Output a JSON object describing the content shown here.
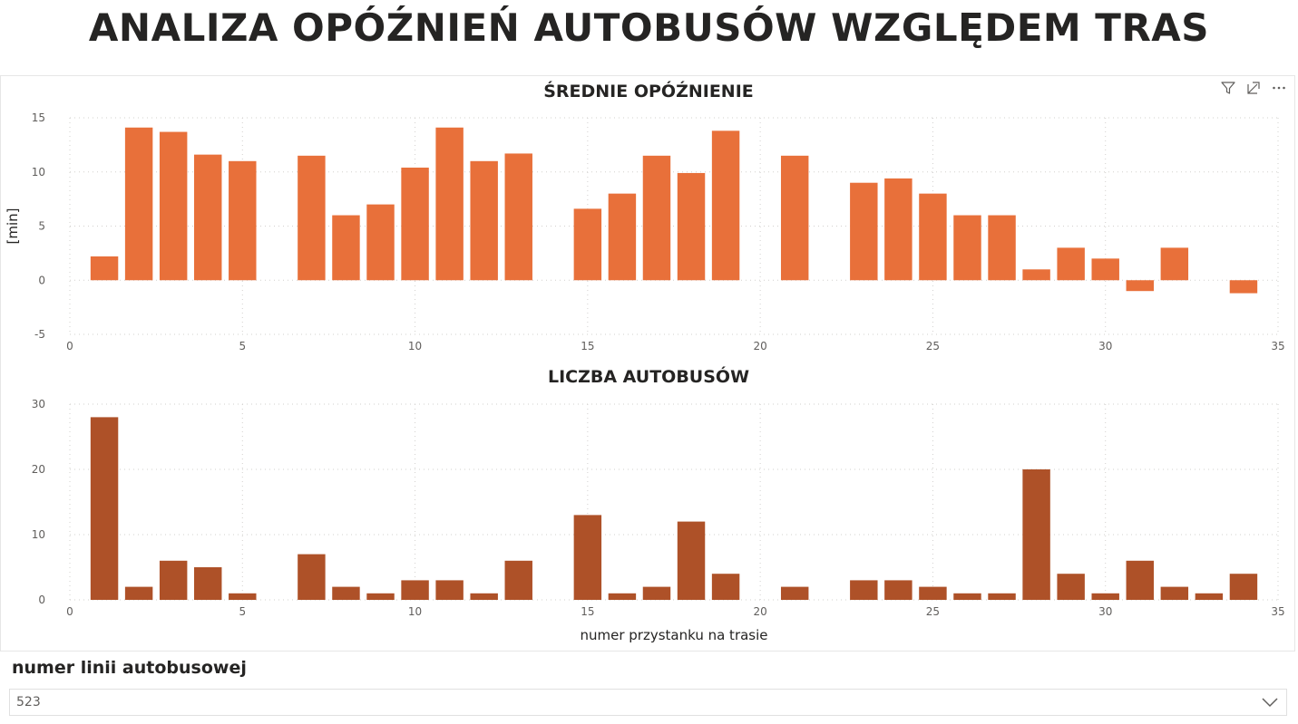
{
  "page_title": "ANALIZA OPÓŹNIEŃ AUTOBUSÓW WZGLĘDEM TRAS",
  "colors": {
    "delay_bar": "#E8703A",
    "count_bar": "#AE5128",
    "gridline": "#d2d0ce",
    "text": "#252423",
    "tick": "#605e5c"
  },
  "visual_header_icons": [
    "filter-icon",
    "focus-mode-icon",
    "more-options-icon"
  ],
  "chart_data": [
    {
      "type": "bar",
      "title": "ŚREDNIE OPÓŹNIENIE",
      "xlabel": "",
      "ylabel": "[min]",
      "xlim": [
        0,
        35
      ],
      "ylim": [
        -5,
        15
      ],
      "xticks": [
        0,
        5,
        10,
        15,
        20,
        25,
        30,
        35
      ],
      "yticks": [
        -5,
        0,
        5,
        10,
        15
      ],
      "grid": true,
      "x": [
        1,
        2,
        3,
        4,
        5,
        7,
        8,
        9,
        10,
        11,
        12,
        13,
        15,
        16,
        17,
        18,
        19,
        21,
        23,
        24,
        25,
        26,
        27,
        28,
        29,
        30,
        31,
        32,
        34
      ],
      "values": [
        2.2,
        14.1,
        13.7,
        11.6,
        11.0,
        11.5,
        6.0,
        7.0,
        10.4,
        14.1,
        11.0,
        11.7,
        6.6,
        8.0,
        11.5,
        9.9,
        13.8,
        11.5,
        9.0,
        9.4,
        8.0,
        6.0,
        6.0,
        1.0,
        3.0,
        2.0,
        -1.0,
        3.0,
        -1.2
      ]
    },
    {
      "type": "bar",
      "title": "LICZBA AUTOBUSÓW",
      "xlabel": "numer przystanku na trasie",
      "ylabel": "",
      "xlim": [
        0,
        35
      ],
      "ylim": [
        0,
        30
      ],
      "xticks": [
        0,
        5,
        10,
        15,
        20,
        25,
        30,
        35
      ],
      "yticks": [
        0,
        10,
        20,
        30
      ],
      "grid": true,
      "x": [
        1,
        2,
        3,
        4,
        5,
        7,
        8,
        9,
        10,
        11,
        12,
        13,
        15,
        16,
        17,
        18,
        19,
        21,
        23,
        24,
        25,
        26,
        27,
        28,
        29,
        30,
        31,
        32,
        33,
        34
      ],
      "values": [
        28,
        2,
        6,
        5,
        1,
        7,
        2,
        1,
        3,
        3,
        1,
        6,
        13,
        1,
        2,
        12,
        4,
        2,
        3,
        3,
        2,
        1,
        1,
        20,
        4,
        1,
        6,
        2,
        1,
        4
      ]
    }
  ],
  "slicer": {
    "title": "numer linii autobusowej",
    "selected_value": "523"
  }
}
